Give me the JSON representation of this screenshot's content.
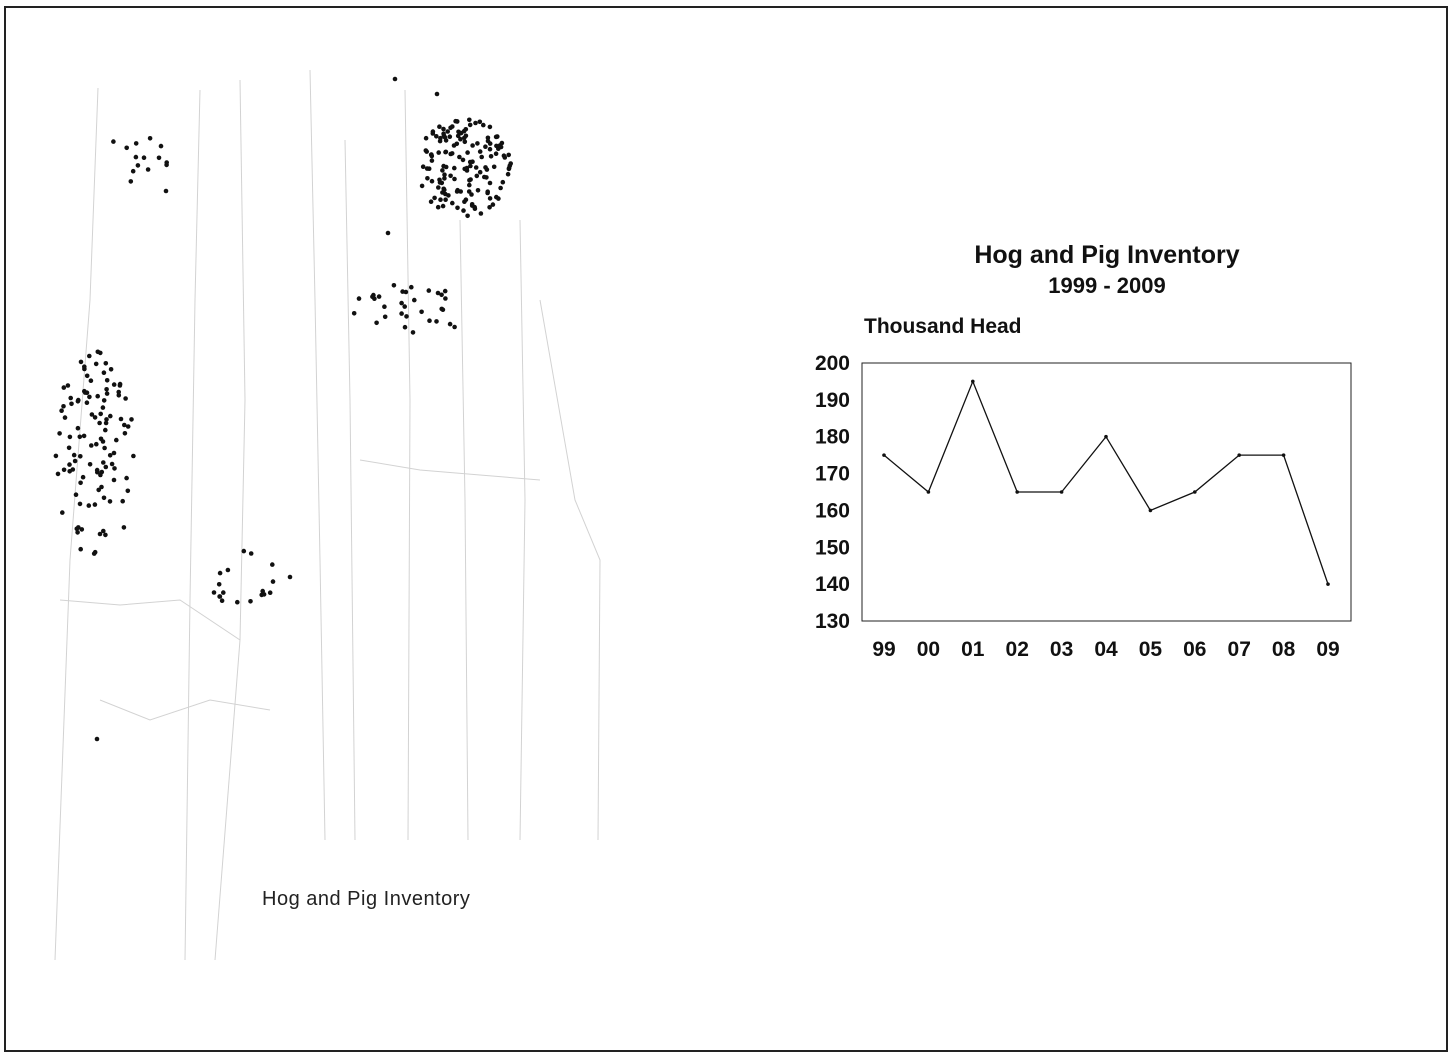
{
  "map": {
    "caption": "Hog and Pig Inventory"
  },
  "chart_data": {
    "type": "line",
    "title": "Hog and Pig Inventory",
    "subtitle": "1999 - 2009",
    "ylabel": "Thousand Head",
    "xlabel": "",
    "categories": [
      "99",
      "00",
      "01",
      "02",
      "03",
      "04",
      "05",
      "06",
      "07",
      "08",
      "09"
    ],
    "values": [
      175,
      165,
      195,
      165,
      165,
      180,
      160,
      165,
      175,
      175,
      140
    ],
    "ylim": [
      130,
      200
    ],
    "yticks": [
      "200",
      "190",
      "180",
      "170",
      "160",
      "150",
      "140",
      "130"
    ],
    "grid": false,
    "legend": "none",
    "line_color": "#111111"
  }
}
